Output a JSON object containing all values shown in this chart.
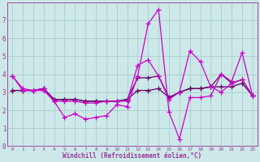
{
  "x": [
    0,
    1,
    2,
    3,
    4,
    5,
    6,
    7,
    8,
    9,
    10,
    11,
    12,
    13,
    14,
    15,
    16,
    17,
    18,
    19,
    20,
    21,
    22,
    23
  ],
  "line1": [
    3.9,
    3.2,
    3.1,
    3.1,
    2.5,
    1.6,
    1.8,
    1.5,
    1.6,
    1.7,
    2.3,
    2.2,
    3.9,
    6.8,
    7.6,
    1.9,
    0.4,
    2.7,
    2.7,
    2.8,
    4.0,
    3.6,
    5.2,
    2.8
  ],
  "line2": [
    3.9,
    3.1,
    3.1,
    3.2,
    2.5,
    2.5,
    2.5,
    2.4,
    2.4,
    2.5,
    2.5,
    2.5,
    4.5,
    4.8,
    3.9,
    2.6,
    3.0,
    5.3,
    4.7,
    3.3,
    3.0,
    3.5,
    3.7,
    2.8
  ],
  "line3": [
    3.1,
    3.1,
    3.1,
    3.2,
    2.6,
    2.6,
    2.6,
    2.5,
    2.5,
    2.5,
    2.5,
    2.6,
    3.8,
    3.8,
    3.9,
    2.7,
    3.0,
    3.2,
    3.2,
    3.3,
    4.0,
    3.5,
    3.7,
    2.8
  ],
  "line4": [
    3.1,
    3.1,
    3.1,
    3.2,
    2.6,
    2.6,
    2.6,
    2.5,
    2.5,
    2.5,
    2.5,
    2.6,
    3.1,
    3.1,
    3.2,
    2.7,
    3.0,
    3.2,
    3.2,
    3.3,
    3.3,
    3.3,
    3.5,
    2.8
  ],
  "bg_color": "#cce8e8",
  "line_color": "#cc00cc",
  "grid_color": "#aacccc",
  "tick_color": "#993399",
  "xlabel": "Windchill (Refroidissement éolien,°C)",
  "ylim": [
    0,
    8
  ],
  "xlim": [
    -0.5,
    23.5
  ],
  "yticks": [
    0,
    1,
    2,
    3,
    4,
    5,
    6,
    7
  ],
  "xticks": [
    0,
    1,
    2,
    3,
    4,
    5,
    6,
    7,
    8,
    9,
    10,
    11,
    12,
    13,
    14,
    15,
    16,
    17,
    18,
    19,
    20,
    21,
    22,
    23
  ]
}
